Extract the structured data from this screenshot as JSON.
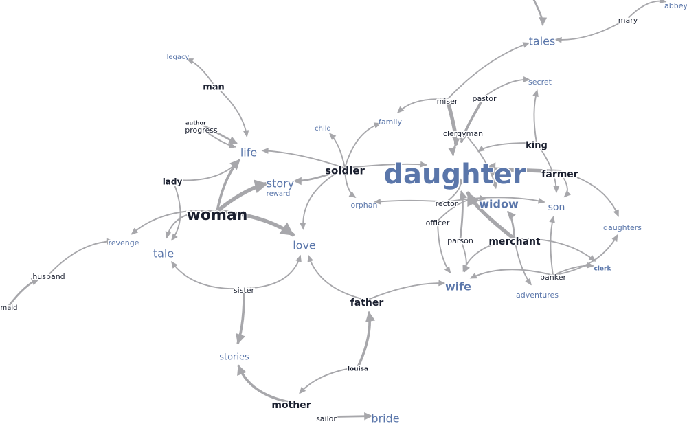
{
  "colors": {
    "edge": "#a7a7ab",
    "node_blue": "#5a76aa",
    "node_dark": "#1a1f2f"
  },
  "nodes": [
    {
      "id": "daughter",
      "label": "daughter",
      "tone": "blue"
    },
    {
      "id": "woman",
      "label": "woman",
      "tone": "dark"
    },
    {
      "id": "widow",
      "label": "widow",
      "tone": "blue"
    },
    {
      "id": "wife",
      "label": "wife",
      "tone": "blue"
    },
    {
      "id": "love",
      "label": "love",
      "tone": "blue"
    },
    {
      "id": "life",
      "label": "life",
      "tone": "blue"
    },
    {
      "id": "story",
      "label": "story",
      "tone": "blue"
    },
    {
      "id": "tales",
      "label": "tales",
      "tone": "blue"
    },
    {
      "id": "tale",
      "label": "tale",
      "tone": "blue"
    },
    {
      "id": "bride",
      "label": "bride",
      "tone": "blue"
    },
    {
      "id": "son",
      "label": "son",
      "tone": "blue"
    },
    {
      "id": "stories",
      "label": "stories",
      "tone": "blue"
    },
    {
      "id": "daughters",
      "label": "daughters",
      "tone": "blue"
    },
    {
      "id": "secret",
      "label": "secret",
      "tone": "blue"
    },
    {
      "id": "family",
      "label": "family",
      "tone": "blue"
    },
    {
      "id": "orphan",
      "label": "orphan",
      "tone": "blue"
    },
    {
      "id": "adventures",
      "label": "adventures",
      "tone": "blue"
    },
    {
      "id": "revenge",
      "label": "revenge",
      "tone": "blue"
    },
    {
      "id": "legacy",
      "label": "legacy",
      "tone": "blue"
    },
    {
      "id": "abbey",
      "label": "abbey",
      "tone": "blue"
    },
    {
      "id": "child",
      "label": "child",
      "tone": "blue"
    },
    {
      "id": "reward",
      "label": "reward",
      "tone": "blue"
    },
    {
      "id": "clerk",
      "label": "clerk",
      "tone": "blue"
    },
    {
      "id": "soldier",
      "label": "soldier",
      "tone": "dark"
    },
    {
      "id": "merchant",
      "label": "merchant",
      "tone": "dark"
    },
    {
      "id": "farmer",
      "label": "farmer",
      "tone": "dark"
    },
    {
      "id": "father",
      "label": "father",
      "tone": "dark"
    },
    {
      "id": "mother",
      "label": "mother",
      "tone": "dark"
    },
    {
      "id": "man",
      "label": "man",
      "tone": "dark"
    },
    {
      "id": "king",
      "label": "king",
      "tone": "dark"
    },
    {
      "id": "lady",
      "label": "lady",
      "tone": "dark"
    },
    {
      "id": "husband",
      "label": "husband",
      "tone": "dark"
    },
    {
      "id": "sister",
      "label": "sister",
      "tone": "dark"
    },
    {
      "id": "miser",
      "label": "miser",
      "tone": "dark"
    },
    {
      "id": "pastor",
      "label": "pastor",
      "tone": "dark"
    },
    {
      "id": "clergyman",
      "label": "clergyman",
      "tone": "dark"
    },
    {
      "id": "rector",
      "label": "rector",
      "tone": "dark"
    },
    {
      "id": "officer",
      "label": "officer",
      "tone": "dark"
    },
    {
      "id": "parson",
      "label": "parson",
      "tone": "dark"
    },
    {
      "id": "banker",
      "label": "banker",
      "tone": "dark"
    },
    {
      "id": "mary",
      "label": "mary",
      "tone": "dark"
    },
    {
      "id": "maid",
      "label": "maid",
      "tone": "dark"
    },
    {
      "id": "sailor",
      "label": "sailor",
      "tone": "dark"
    },
    {
      "id": "louisa",
      "label": "louisa",
      "tone": "dark"
    },
    {
      "id": "author",
      "label": "author",
      "tone": "dark"
    },
    {
      "id": "progress",
      "label": "progress",
      "tone": "dark"
    },
    {
      "id": "tales_src",
      "label": "",
      "tone": "dark"
    }
  ],
  "edges": [
    {
      "from": "woman",
      "to": "love",
      "weight": 5
    },
    {
      "from": "woman",
      "to": "story",
      "weight": 5
    },
    {
      "from": "woman",
      "to": "life",
      "weight": 3
    },
    {
      "from": "woman",
      "to": "tale",
      "weight": 1
    },
    {
      "from": "woman",
      "to": "revenge",
      "weight": 1
    },
    {
      "from": "man",
      "to": "legacy",
      "weight": 1
    },
    {
      "from": "man",
      "to": "life",
      "weight": 1
    },
    {
      "from": "author",
      "to": "life",
      "weight": 2
    },
    {
      "from": "progress",
      "to": "life",
      "weight": 1
    },
    {
      "from": "lady",
      "to": "life",
      "weight": 1
    },
    {
      "from": "lady",
      "to": "tale",
      "weight": 1
    },
    {
      "from": "soldier",
      "to": "life",
      "weight": 1
    },
    {
      "from": "soldier",
      "to": "story",
      "weight": 2
    },
    {
      "from": "soldier",
      "to": "child",
      "weight": 1
    },
    {
      "from": "soldier",
      "to": "family",
      "weight": 1
    },
    {
      "from": "soldier",
      "to": "daughter",
      "weight": 1
    },
    {
      "from": "soldier",
      "to": "orphan",
      "weight": 1
    },
    {
      "from": "soldier",
      "to": "love",
      "weight": 1
    },
    {
      "from": "husband",
      "to": "revenge",
      "weight": 1
    },
    {
      "from": "maid",
      "to": "husband",
      "weight": 2
    },
    {
      "from": "sister",
      "to": "tale",
      "weight": 1
    },
    {
      "from": "sister",
      "to": "love",
      "weight": 1
    },
    {
      "from": "sister",
      "to": "stories",
      "weight": 3
    },
    {
      "from": "mother",
      "to": "stories",
      "weight": 3
    },
    {
      "from": "louisa",
      "to": "mother",
      "weight": 1
    },
    {
      "from": "louisa",
      "to": "father",
      "weight": 3
    },
    {
      "from": "father",
      "to": "love",
      "weight": 1
    },
    {
      "from": "father",
      "to": "wife",
      "weight": 1
    },
    {
      "from": "sailor",
      "to": "bride",
      "weight": 2
    },
    {
      "from": "miser",
      "to": "daughter",
      "weight": 5
    },
    {
      "from": "miser",
      "to": "family",
      "weight": 1
    },
    {
      "from": "miser",
      "to": "tales",
      "weight": 1
    },
    {
      "from": "pastor",
      "to": "daughter",
      "weight": 3
    },
    {
      "from": "pastor",
      "to": "secret",
      "weight": 1
    },
    {
      "from": "clergyman",
      "to": "daughter",
      "weight": 2
    },
    {
      "from": "clergyman",
      "to": "widow",
      "weight": 1
    },
    {
      "from": "farmer",
      "to": "daughter",
      "weight": 5
    },
    {
      "from": "farmer",
      "to": "son",
      "weight": 1
    },
    {
      "from": "farmer",
      "to": "daughters",
      "weight": 1
    },
    {
      "from": "king",
      "to": "daughter",
      "weight": 1
    },
    {
      "from": "king",
      "to": "secret",
      "weight": 1
    },
    {
      "from": "king",
      "to": "son",
      "weight": 1
    },
    {
      "from": "merchant",
      "to": "daughter",
      "weight": 5
    },
    {
      "from": "merchant",
      "to": "widow",
      "weight": 2
    },
    {
      "from": "merchant",
      "to": "wife",
      "weight": 1
    },
    {
      "from": "merchant",
      "to": "clerk",
      "weight": 1
    },
    {
      "from": "merchant",
      "to": "adventures",
      "weight": 1
    },
    {
      "from": "rector",
      "to": "daughter",
      "weight": 1
    },
    {
      "from": "rector",
      "to": "orphan",
      "weight": 1
    },
    {
      "from": "rector",
      "to": "son",
      "weight": 1
    },
    {
      "from": "officer",
      "to": "widow",
      "weight": 1
    },
    {
      "from": "officer",
      "to": "wife",
      "weight": 1
    },
    {
      "from": "parson",
      "to": "daughter",
      "weight": 2
    },
    {
      "from": "parson",
      "to": "wife",
      "weight": 1
    },
    {
      "from": "banker",
      "to": "son",
      "weight": 1
    },
    {
      "from": "banker",
      "to": "daughters",
      "weight": 1
    },
    {
      "from": "banker",
      "to": "wife",
      "weight": 1
    },
    {
      "from": "banker",
      "to": "clerk",
      "weight": 1
    },
    {
      "from": "mary",
      "to": "tales",
      "weight": 1
    },
    {
      "from": "mary",
      "to": "abbey",
      "weight": 1
    },
    {
      "from": "tales_src",
      "to": "tales",
      "weight": 2
    }
  ]
}
